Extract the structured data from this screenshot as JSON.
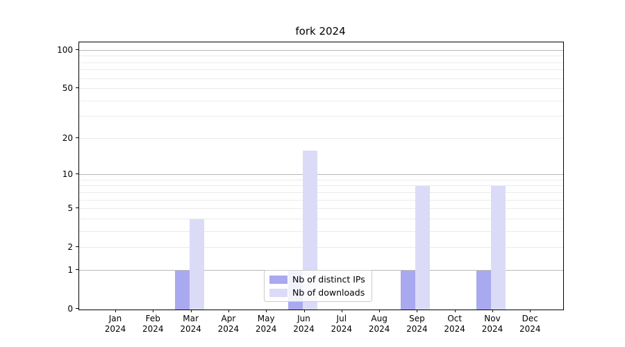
{
  "title": "fork 2024",
  "legend": {
    "items": [
      {
        "label": "Nb of distinct IPs",
        "series": "ips"
      },
      {
        "label": "Nb of downloads",
        "series": "downloads"
      }
    ]
  },
  "colors": {
    "ips": "#a9a9f0",
    "downloads": "#dbdbf8",
    "major_grid": "#b8b8b8",
    "minor_grid": "#ebebeb",
    "axis": "#000000"
  },
  "chart_data": {
    "type": "bar",
    "title": "fork 2024",
    "categories": [
      "Jan 2024",
      "Feb 2024",
      "Mar 2024",
      "Apr 2024",
      "May 2024",
      "Jun 2024",
      "Jul 2024",
      "Aug 2024",
      "Sep 2024",
      "Oct 2024",
      "Nov 2024",
      "Dec 2024"
    ],
    "series": [
      {
        "name": "Nb of distinct IPs",
        "color": "#a9a9f0",
        "values": [
          0,
          0,
          1,
          0,
          0,
          1,
          0,
          0,
          1,
          0,
          1,
          0
        ]
      },
      {
        "name": "Nb of downloads",
        "color": "#dbdbf8",
        "values": [
          0,
          0,
          4,
          0,
          0,
          16,
          0,
          0,
          8,
          0,
          8,
          0
        ]
      }
    ],
    "xlabel": "",
    "ylabel": "",
    "yscale": "log1p",
    "ylim": [
      0,
      115
    ],
    "yticks": [
      0,
      1,
      2,
      5,
      10,
      20,
      50,
      100
    ],
    "major_gridlines": [
      1,
      10,
      100
    ],
    "minor_gridlines": [
      2,
      3,
      4,
      5,
      6,
      7,
      8,
      9,
      20,
      30,
      40,
      50,
      60,
      70,
      80,
      90
    ],
    "grid": "on",
    "legend_position": "lower center"
  }
}
